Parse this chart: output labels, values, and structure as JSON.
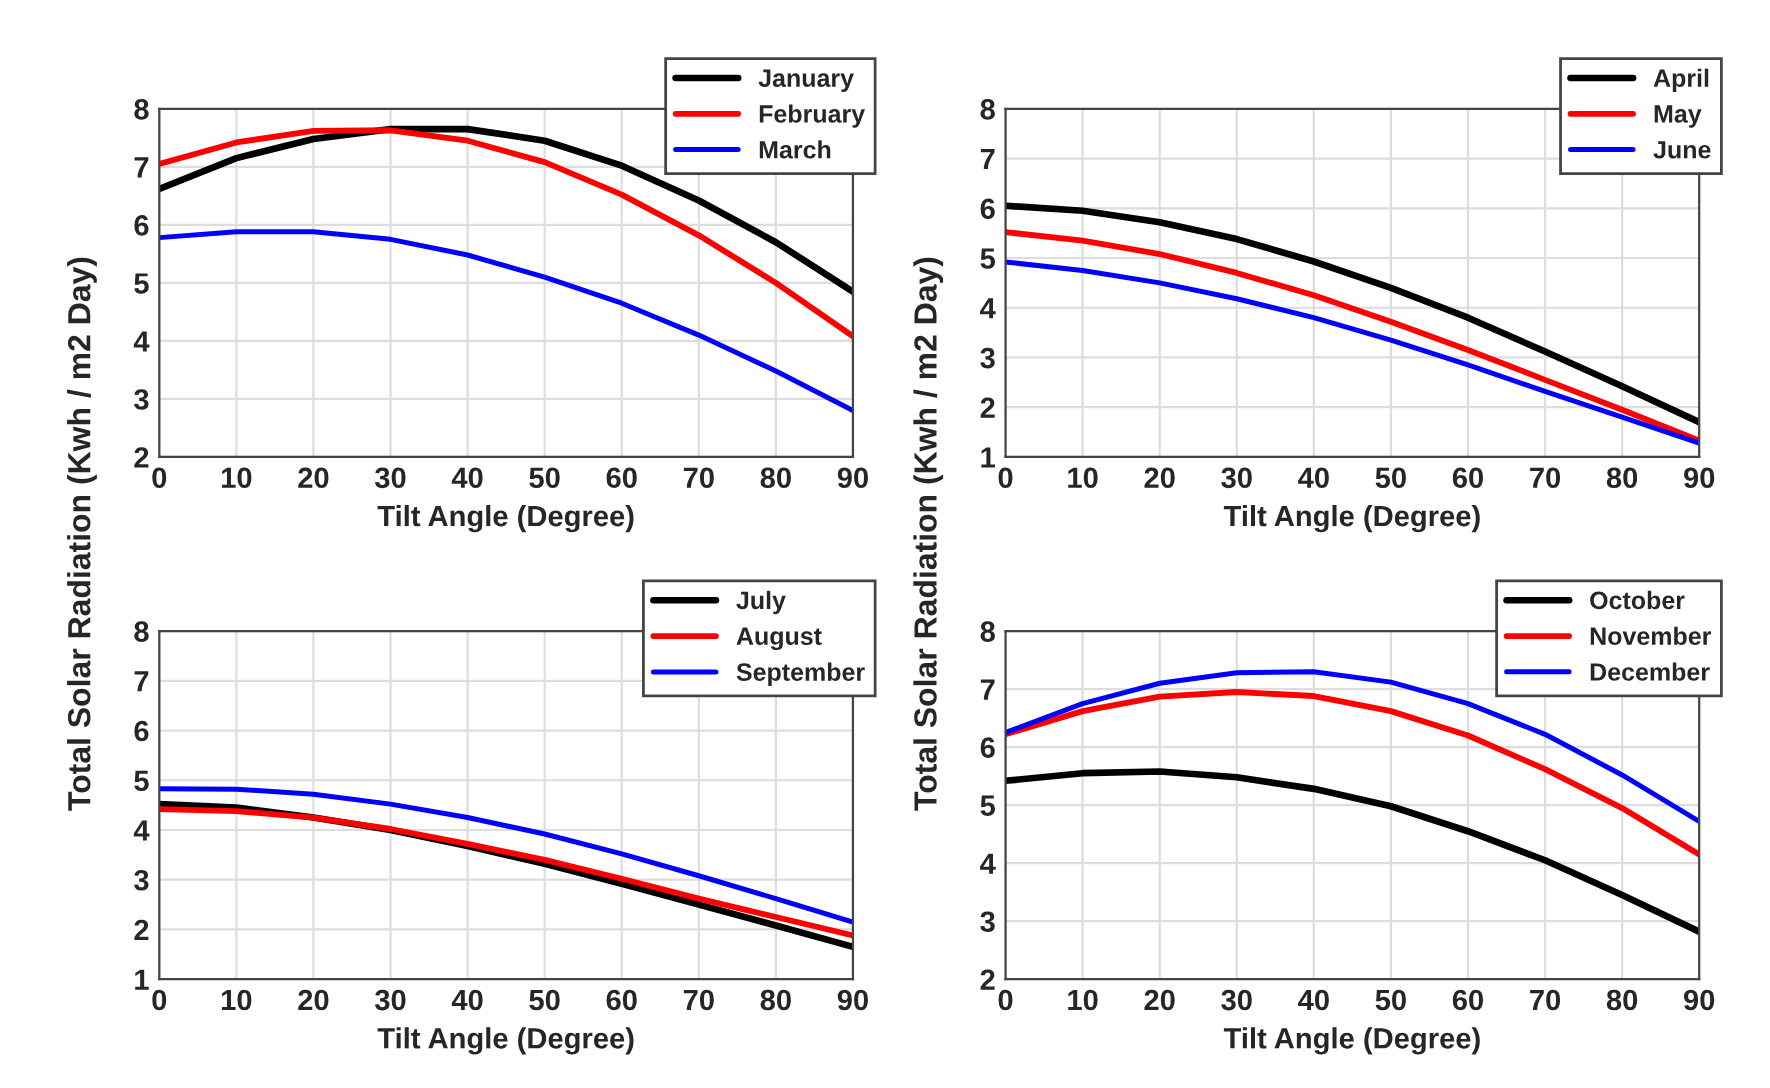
{
  "chart_data": [
    {
      "type": "line",
      "xlabel": "Tilt Angle (Degree)",
      "ylabel": "Total Solar Radiation (Kwh / m2 Day)",
      "x": [
        0,
        10,
        20,
        30,
        40,
        50,
        60,
        70,
        80,
        90
      ],
      "xlim": [
        0,
        90
      ],
      "xticks": [
        0,
        10,
        20,
        30,
        40,
        50,
        60,
        70,
        80,
        90
      ],
      "ylim": [
        2,
        8
      ],
      "yticks": [
        2,
        3,
        4,
        5,
        6,
        7,
        8
      ],
      "grid": true,
      "legend": "top right",
      "series": [
        {
          "name": "January",
          "color": "#000000",
          "values": [
            6.62,
            7.15,
            7.48,
            7.65,
            7.65,
            7.45,
            7.02,
            6.42,
            5.7,
            4.85
          ]
        },
        {
          "name": "February",
          "color": "#ff0000",
          "values": [
            7.05,
            7.42,
            7.62,
            7.63,
            7.45,
            7.08,
            6.52,
            5.82,
            5.0,
            4.08
          ]
        },
        {
          "name": "March",
          "color": "#0000ff",
          "values": [
            5.78,
            5.88,
            5.88,
            5.75,
            5.48,
            5.1,
            4.65,
            4.1,
            3.48,
            2.8
          ]
        }
      ]
    },
    {
      "type": "line",
      "xlabel": "Tilt Angle (Degree)",
      "ylabel": "Total Solar Radiation (Kwh / m2 Day)",
      "x": [
        0,
        10,
        20,
        30,
        40,
        50,
        60,
        70,
        80,
        90
      ],
      "xlim": [
        0,
        90
      ],
      "xticks": [
        0,
        10,
        20,
        30,
        40,
        50,
        60,
        70,
        80,
        90
      ],
      "ylim": [
        1,
        8
      ],
      "yticks": [
        1,
        2,
        3,
        4,
        5,
        6,
        7,
        8
      ],
      "grid": true,
      "legend": "top right",
      "series": [
        {
          "name": "April",
          "color": "#000000",
          "values": [
            6.05,
            5.95,
            5.72,
            5.38,
            4.93,
            4.4,
            3.8,
            3.12,
            2.42,
            1.7
          ]
        },
        {
          "name": "May",
          "color": "#ff0000",
          "values": [
            5.52,
            5.35,
            5.08,
            4.7,
            4.25,
            3.72,
            3.15,
            2.55,
            1.95,
            1.33
          ]
        },
        {
          "name": "June",
          "color": "#0000ff",
          "values": [
            4.92,
            4.75,
            4.5,
            4.18,
            3.8,
            3.35,
            2.85,
            2.32,
            1.8,
            1.28
          ]
        }
      ]
    },
    {
      "type": "line",
      "xlabel": "Tilt Angle (Degree)",
      "x": [
        0,
        10,
        20,
        30,
        40,
        50,
        60,
        70,
        80,
        90
      ],
      "xlim": [
        0,
        90
      ],
      "xticks": [
        0,
        10,
        20,
        30,
        40,
        50,
        60,
        70,
        80,
        90
      ],
      "ylim": [
        1,
        8
      ],
      "yticks": [
        1,
        2,
        3,
        4,
        5,
        6,
        7,
        8
      ],
      "grid": true,
      "legend": "top right",
      "series": [
        {
          "name": "July",
          "color": "#000000",
          "values": [
            4.52,
            4.45,
            4.25,
            4.0,
            3.68,
            3.32,
            2.92,
            2.5,
            2.08,
            1.65
          ]
        },
        {
          "name": "August",
          "color": "#ff0000",
          "values": [
            4.42,
            4.38,
            4.25,
            4.02,
            3.72,
            3.4,
            3.02,
            2.62,
            2.25,
            1.88
          ]
        },
        {
          "name": "September",
          "color": "#0000ff",
          "values": [
            4.83,
            4.82,
            4.72,
            4.52,
            4.25,
            3.92,
            3.52,
            3.08,
            2.62,
            2.15
          ]
        }
      ]
    },
    {
      "type": "line",
      "xlabel": "Tilt Angle (Degree)",
      "x": [
        0,
        10,
        20,
        30,
        40,
        50,
        60,
        70,
        80,
        90
      ],
      "xlim": [
        0,
        90
      ],
      "xticks": [
        0,
        10,
        20,
        30,
        40,
        50,
        60,
        70,
        80,
        90
      ],
      "ylim": [
        2,
        8
      ],
      "yticks": [
        2,
        3,
        4,
        5,
        6,
        7,
        8
      ],
      "grid": true,
      "legend": "top right",
      "series": [
        {
          "name": "October",
          "color": "#000000",
          "values": [
            5.42,
            5.55,
            5.58,
            5.48,
            5.28,
            4.98,
            4.55,
            4.05,
            3.45,
            2.82
          ]
        },
        {
          "name": "November",
          "color": "#ff0000",
          "values": [
            6.22,
            6.62,
            6.87,
            6.95,
            6.88,
            6.62,
            6.2,
            5.62,
            4.95,
            4.15
          ]
        },
        {
          "name": "December",
          "color": "#0000ff",
          "values": [
            6.25,
            6.75,
            7.1,
            7.28,
            7.3,
            7.12,
            6.75,
            6.22,
            5.52,
            4.72
          ]
        }
      ]
    }
  ]
}
